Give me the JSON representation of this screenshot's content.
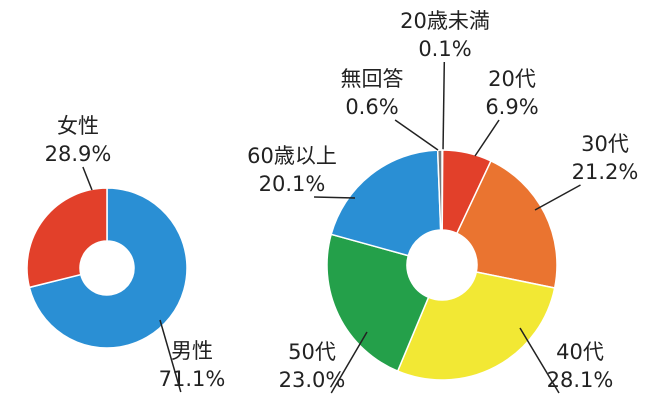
{
  "chart_data": [
    {
      "type": "donut",
      "categories": [
        "男性",
        "女性"
      ],
      "values": [
        71.1,
        28.9
      ],
      "value_labels": [
        "71.1%",
        "28.9%"
      ],
      "colors": [
        "#2a8fd4",
        "#e2402a"
      ]
    },
    {
      "type": "donut",
      "categories": [
        "20歳未満",
        "20代",
        "30代",
        "40代",
        "50代",
        "60歳以上",
        "無回答"
      ],
      "values": [
        0.1,
        6.9,
        21.2,
        28.1,
        23.0,
        20.1,
        0.6
      ],
      "value_labels": [
        "0.1%",
        "6.9%",
        "21.2%",
        "28.1%",
        "23.0%",
        "20.1%",
        "0.6%"
      ],
      "colors": [
        "#333333",
        "#e2402a",
        "#ea7430",
        "#f2e834",
        "#24a04a",
        "#2a8fd4",
        "#777777"
      ]
    }
  ]
}
